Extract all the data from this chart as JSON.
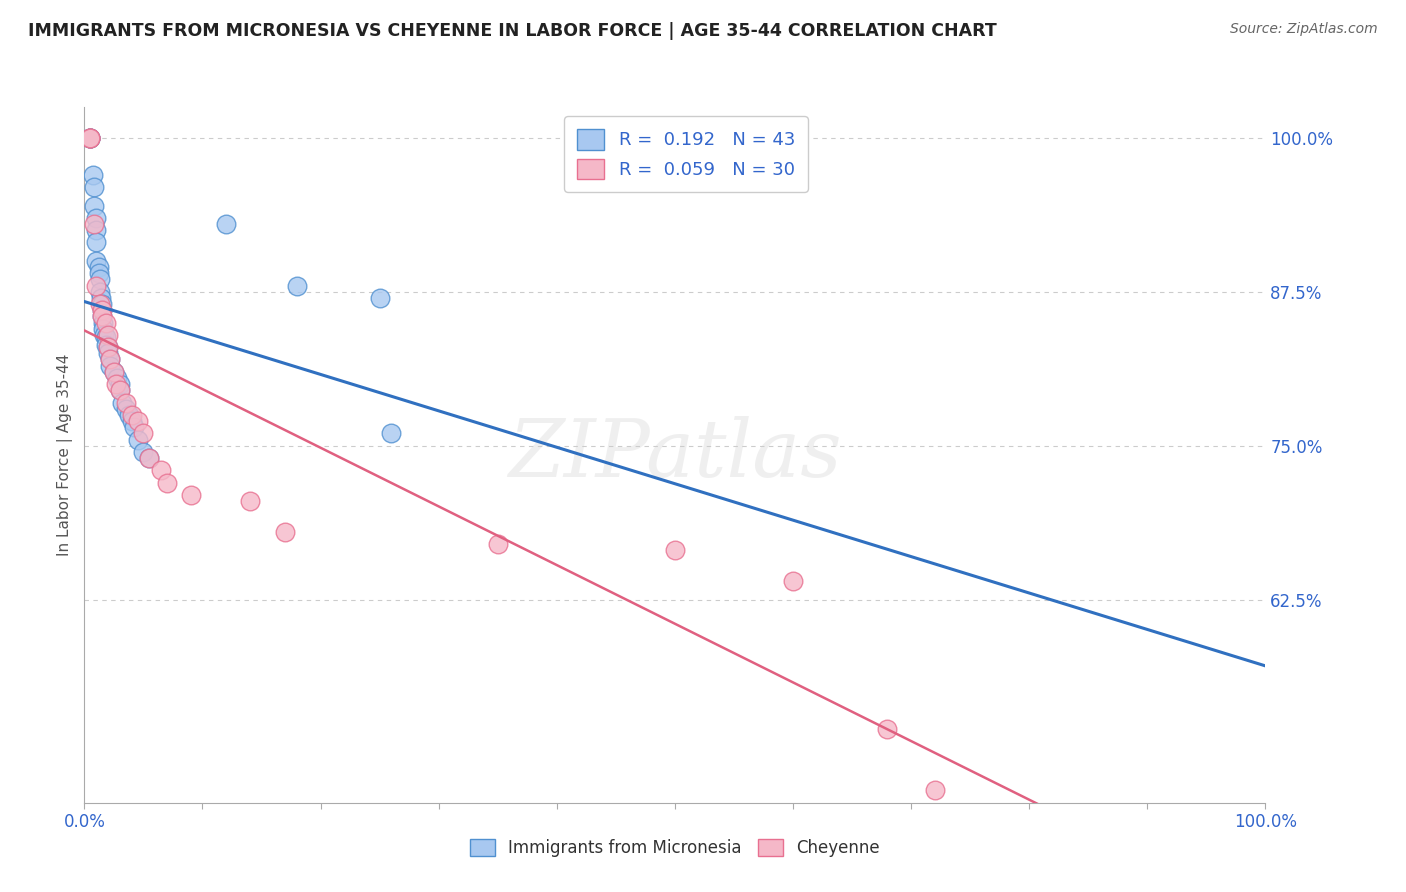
{
  "title": "IMMIGRANTS FROM MICRONESIA VS CHEYENNE IN LABOR FORCE | AGE 35-44 CORRELATION CHART",
  "source": "Source: ZipAtlas.com",
  "ylabel": "In Labor Force | Age 35-44",
  "xlim": [
    0.0,
    1.0
  ],
  "ylim": [
    0.46,
    1.025
  ],
  "ytick_labels": [
    "62.5%",
    "75.0%",
    "87.5%",
    "100.0%"
  ],
  "ytick_values": [
    0.625,
    0.75,
    0.875,
    1.0
  ],
  "blue_R": 0.192,
  "blue_N": 43,
  "pink_R": 0.059,
  "pink_N": 30,
  "watermark": "ZIPatlas",
  "blue_fill": "#A8C8F0",
  "pink_fill": "#F5B8C8",
  "blue_edge": "#5090D0",
  "pink_edge": "#E87090",
  "blue_line": "#3070C0",
  "pink_line": "#E06080",
  "legend_label_blue": "Immigrants from Micronesia",
  "legend_label_pink": "Cheyenne",
  "grid_color": "#CCCCCC",
  "bg": "#FFFFFF",
  "blue_x": [
    0.005,
    0.005,
    0.005,
    0.007,
    0.008,
    0.008,
    0.01,
    0.01,
    0.01,
    0.01,
    0.012,
    0.012,
    0.013,
    0.013,
    0.014,
    0.015,
    0.015,
    0.015,
    0.016,
    0.016,
    0.017,
    0.018,
    0.018,
    0.02,
    0.02,
    0.022,
    0.022,
    0.025,
    0.028,
    0.03,
    0.03,
    0.032,
    0.035,
    0.038,
    0.04,
    0.042,
    0.045,
    0.05,
    0.055,
    0.12,
    0.18,
    0.25,
    0.26
  ],
  "blue_y": [
    1.0,
    1.0,
    1.0,
    0.97,
    0.96,
    0.945,
    0.935,
    0.925,
    0.915,
    0.9,
    0.895,
    0.89,
    0.885,
    0.875,
    0.87,
    0.865,
    0.86,
    0.855,
    0.85,
    0.845,
    0.84,
    0.838,
    0.832,
    0.83,
    0.825,
    0.82,
    0.815,
    0.81,
    0.805,
    0.8,
    0.795,
    0.785,
    0.78,
    0.775,
    0.77,
    0.765,
    0.755,
    0.745,
    0.74,
    0.93,
    0.88,
    0.87,
    0.76
  ],
  "pink_x": [
    0.005,
    0.005,
    0.005,
    0.008,
    0.01,
    0.013,
    0.015,
    0.015,
    0.018,
    0.02,
    0.02,
    0.022,
    0.025,
    0.027,
    0.03,
    0.035,
    0.04,
    0.045,
    0.05,
    0.055,
    0.065,
    0.07,
    0.09,
    0.14,
    0.17,
    0.35,
    0.5,
    0.6,
    0.68,
    0.72
  ],
  "pink_y": [
    1.0,
    1.0,
    1.0,
    0.93,
    0.88,
    0.865,
    0.86,
    0.855,
    0.85,
    0.84,
    0.83,
    0.82,
    0.81,
    0.8,
    0.795,
    0.785,
    0.775,
    0.77,
    0.76,
    0.74,
    0.73,
    0.72,
    0.71,
    0.705,
    0.68,
    0.67,
    0.665,
    0.64,
    0.52,
    0.47
  ]
}
